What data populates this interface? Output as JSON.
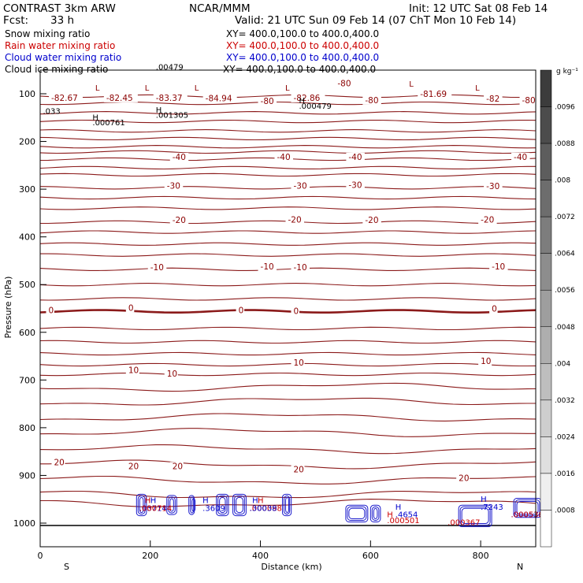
{
  "header": {
    "model": "CONTRAST  3km ARW",
    "org": "NCAR/MMM",
    "init": "Init: 12 UTC Sat 08 Feb 14",
    "fcst_label": "Fcst:",
    "fcst_value": "33 h",
    "valid": "Valid: 21 UTC Sun 09 Feb 14 (07 ChT Mon 10 Feb 14)"
  },
  "legend": [
    {
      "name": "Snow mixing ratio",
      "xy": "XY= 400.0,100.0 to 400.0,400.0",
      "color": "#000000"
    },
    {
      "name": "Rain water mixing ratio",
      "xy": "XY= 400.0,100.0 to 400.0,400.0",
      "color": "#cc0000"
    },
    {
      "name": "Cloud water mixing ratio",
      "xy": "XY= 400.0,100.0 to 400.0,400.0",
      "color": "#0000cc"
    },
    {
      "name": "Cloud ice mixing ratio",
      "xy": "XY= 400.0,100.0 to 400.0,400.0",
      "color": "#000000"
    }
  ],
  "chart_data": {
    "type": "contour",
    "xlabel": "Distance (km)",
    "ylabel": "Pressure (hPa)",
    "xlim": [
      0,
      900
    ],
    "ylim": [
      1050,
      30
    ],
    "x_ticks": [
      "0",
      "200",
      "400",
      "600",
      "800"
    ],
    "y_ticks": [
      "100",
      "200",
      "300",
      "400",
      "500",
      "600",
      "700",
      "800",
      "900",
      "1000"
    ],
    "end_labels": {
      "left": "S",
      "right": "N"
    },
    "colorbar_unit": "g kg⁻¹",
    "colorbar_ticks": [
      ".0096",
      ".0088",
      ".008",
      ".0072",
      ".0064",
      ".0056",
      ".0048",
      ".004",
      ".0032",
      ".0024",
      ".0016",
      ".0008"
    ],
    "temperature_labels": [
      {
        "text": "-82.67",
        "x": 20,
        "p": 113
      },
      {
        "text": "-82.45",
        "x": 120,
        "p": 113
      },
      {
        "text": "-83.37",
        "x": 210,
        "p": 113
      },
      {
        "text": "-84.94",
        "x": 300,
        "p": 114
      },
      {
        "text": "-80",
        "x": 400,
        "p": 120
      },
      {
        "text": "-82.86",
        "x": 460,
        "p": 113
      },
      {
        "text": "-80",
        "x": 540,
        "p": 83
      },
      {
        "text": "-81.69",
        "x": 690,
        "p": 105
      },
      {
        "text": "-80",
        "x": 590,
        "p": 118
      },
      {
        "text": "-82",
        "x": 810,
        "p": 115
      },
      {
        "text": "-80",
        "x": 875,
        "p": 118
      },
      {
        "text": "-40",
        "x": 240,
        "p": 237
      },
      {
        "text": "-40",
        "x": 430,
        "p": 237
      },
      {
        "text": "-40",
        "x": 560,
        "p": 237
      },
      {
        "text": "-40",
        "x": 860,
        "p": 237
      },
      {
        "text": "-30",
        "x": 230,
        "p": 297
      },
      {
        "text": "-30",
        "x": 460,
        "p": 297
      },
      {
        "text": "-30",
        "x": 560,
        "p": 296
      },
      {
        "text": "-30",
        "x": 810,
        "p": 298
      },
      {
        "text": "-20",
        "x": 240,
        "p": 369
      },
      {
        "text": "-20",
        "x": 450,
        "p": 368
      },
      {
        "text": "-20",
        "x": 590,
        "p": 369
      },
      {
        "text": "-20",
        "x": 800,
        "p": 368
      },
      {
        "text": "-10",
        "x": 200,
        "p": 468
      },
      {
        "text": "-10",
        "x": 400,
        "p": 467
      },
      {
        "text": "-10",
        "x": 460,
        "p": 468
      },
      {
        "text": "-10",
        "x": 820,
        "p": 467
      },
      {
        "text": "0",
        "x": 15,
        "p": 558
      },
      {
        "text": "0",
        "x": 160,
        "p": 553
      },
      {
        "text": "0",
        "x": 360,
        "p": 558
      },
      {
        "text": "0",
        "x": 460,
        "p": 560
      },
      {
        "text": "0",
        "x": 820,
        "p": 555
      },
      {
        "text": "10",
        "x": 460,
        "p": 668
      },
      {
        "text": "10",
        "x": 160,
        "p": 684
      },
      {
        "text": "10",
        "x": 230,
        "p": 691
      },
      {
        "text": "10",
        "x": 800,
        "p": 665
      },
      {
        "text": "20",
        "x": 25,
        "p": 877
      },
      {
        "text": "20",
        "x": 160,
        "p": 885
      },
      {
        "text": "20",
        "x": 240,
        "p": 885
      },
      {
        "text": "20",
        "x": 460,
        "p": 892
      },
      {
        "text": "20",
        "x": 760,
        "p": 910
      }
    ],
    "annotations": [
      {
        "text": "L",
        "x": 100,
        "p": 93,
        "color": "#8b0000"
      },
      {
        "text": "L",
        "x": 190,
        "p": 93,
        "color": "#8b0000"
      },
      {
        "text": "L",
        "x": 280,
        "p": 93,
        "color": "#8b0000"
      },
      {
        "text": "L",
        "x": 445,
        "p": 93,
        "color": "#8b0000"
      },
      {
        "text": "L",
        "x": 670,
        "p": 85,
        "color": "#8b0000"
      },
      {
        "text": "L",
        "x": 790,
        "p": 93,
        "color": "#8b0000"
      },
      {
        "text": "H",
        "x": 470,
        "p": 120,
        "color": "#000000"
      },
      {
        "text": ".000479",
        "x": 470,
        "p": 131,
        "color": "#000000"
      },
      {
        "text": ".00479",
        "x": 210,
        "p": 50,
        "color": "#000000"
      },
      {
        "text": ".001305",
        "x": 210,
        "p": 150,
        "color": "#000000"
      },
      {
        "text": "H",
        "x": 210,
        "p": 140,
        "color": "#000000"
      },
      {
        "text": "H",
        "x": 95,
        "p": 155,
        "color": "#000000"
      },
      {
        "text": ".000761",
        "x": 95,
        "p": 166,
        "color": "#000000"
      },
      {
        "text": ".033",
        "x": 5,
        "p": 142,
        "color": "#000000"
      },
      {
        "text": "H",
        "x": 190,
        "p": 958,
        "color": "#cc0000"
      },
      {
        "text": "H",
        "x": 200,
        "p": 958,
        "color": "#0000cc"
      },
      {
        "text": ".03714",
        "x": 180,
        "p": 974,
        "color": "#0000cc"
      },
      {
        "text": ".000714",
        "x": 180,
        "p": 974,
        "color": "#cc0000"
      },
      {
        "text": "H",
        "x": 295,
        "p": 958,
        "color": "#0000cc"
      },
      {
        "text": ".3609",
        "x": 295,
        "p": 974,
        "color": "#0000cc"
      },
      {
        "text": "H",
        "x": 385,
        "p": 958,
        "color": "#0000cc"
      },
      {
        "text": "H",
        "x": 395,
        "p": 958,
        "color": "#cc0000"
      },
      {
        "text": ".000098",
        "x": 380,
        "p": 974,
        "color": "#cc0000"
      },
      {
        "text": ".30038",
        "x": 380,
        "p": 974,
        "color": "#0000cc"
      },
      {
        "text": "H",
        "x": 645,
        "p": 972,
        "color": "#0000cc"
      },
      {
        "text": ".4654",
        "x": 645,
        "p": 988,
        "color": "#0000cc"
      },
      {
        "text": "H",
        "x": 630,
        "p": 988,
        "color": "#cc0000"
      },
      {
        "text": ".000501",
        "x": 630,
        "p": 1000,
        "color": "#cc0000"
      },
      {
        "text": ".000367",
        "x": 740,
        "p": 1004,
        "color": "#cc0000"
      },
      {
        "text": "H",
        "x": 800,
        "p": 955,
        "color": "#0000cc"
      },
      {
        "text": ".7243",
        "x": 800,
        "p": 972,
        "color": "#0000cc"
      },
      {
        "text": ".000538",
        "x": 855,
        "p": 988,
        "color": "#0000cc"
      },
      {
        "text": ".000538",
        "x": 855,
        "p": 988,
        "color": "#cc0000"
      }
    ],
    "isotherm_levels": [
      105,
      120,
      140,
      158,
      178,
      194,
      211,
      222,
      237,
      255,
      270,
      297,
      318,
      340,
      369,
      390,
      415,
      438,
      468,
      500,
      530,
      556,
      592,
      620,
      645,
      668,
      688,
      715,
      745,
      778,
      810,
      845,
      877,
      910,
      940,
      958
    ],
    "cloud_cells": [
      {
        "x": 175,
        "p": 962,
        "w": 18,
        "dp": 45
      },
      {
        "x": 230,
        "p": 962,
        "w": 18,
        "dp": 40
      },
      {
        "x": 270,
        "p": 962,
        "w": 10,
        "dp": 40
      },
      {
        "x": 320,
        "p": 962,
        "w": 22,
        "dp": 45
      },
      {
        "x": 350,
        "p": 962,
        "w": 24,
        "dp": 45
      },
      {
        "x": 440,
        "p": 962,
        "w": 16,
        "dp": 45
      },
      {
        "x": 555,
        "p": 980,
        "w": 40,
        "dp": 35
      },
      {
        "x": 600,
        "p": 980,
        "w": 18,
        "dp": 35
      },
      {
        "x": 760,
        "p": 985,
        "w": 60,
        "dp": 45
      },
      {
        "x": 860,
        "p": 968,
        "w": 50,
        "dp": 40
      }
    ]
  }
}
